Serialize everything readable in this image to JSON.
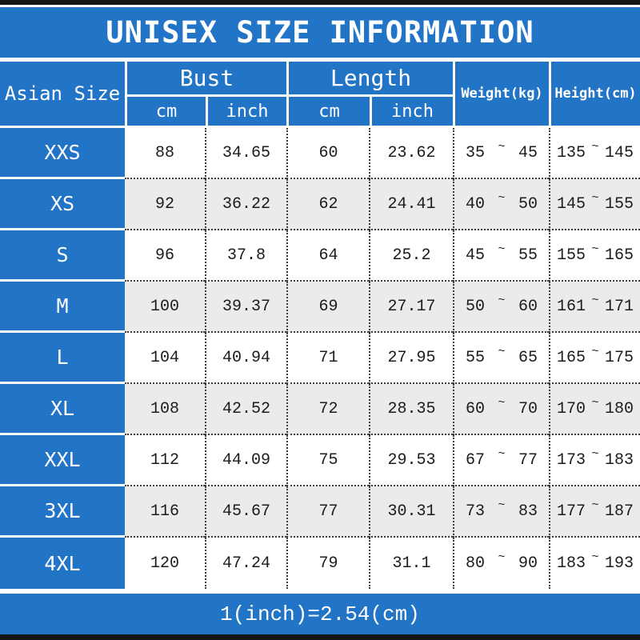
{
  "chart_data": {
    "type": "table",
    "title": "UNISEX SIZE INFORMATION",
    "header": {
      "size_column": "Asian Size",
      "bust_group": "Bust",
      "length_group": "Length",
      "unit_cm": "cm",
      "unit_inch": "inch",
      "weight_column": "Weight(kg)",
      "height_column": "Height(cm)"
    },
    "tilde": "~",
    "columns": [
      "Asian Size",
      "Bust cm",
      "Bust inch",
      "Length cm",
      "Length inch",
      "Weight(kg)",
      "Height(cm)"
    ],
    "rows": [
      {
        "size": "XXS",
        "bust_cm": "88",
        "bust_inch": "34.65",
        "length_cm": "60",
        "length_inch": "23.62",
        "weight_min": "35",
        "weight_max": "45",
        "height_min": "135",
        "height_max": "145"
      },
      {
        "size": "XS",
        "bust_cm": "92",
        "bust_inch": "36.22",
        "length_cm": "62",
        "length_inch": "24.41",
        "weight_min": "40",
        "weight_max": "50",
        "height_min": "145",
        "height_max": "155"
      },
      {
        "size": "S",
        "bust_cm": "96",
        "bust_inch": "37.8",
        "length_cm": "64",
        "length_inch": "25.2",
        "weight_min": "45",
        "weight_max": "55",
        "height_min": "155",
        "height_max": "165"
      },
      {
        "size": "M",
        "bust_cm": "100",
        "bust_inch": "39.37",
        "length_cm": "69",
        "length_inch": "27.17",
        "weight_min": "50",
        "weight_max": "60",
        "height_min": "161",
        "height_max": "171"
      },
      {
        "size": "L",
        "bust_cm": "104",
        "bust_inch": "40.94",
        "length_cm": "71",
        "length_inch": "27.95",
        "weight_min": "55",
        "weight_max": "65",
        "height_min": "165",
        "height_max": "175"
      },
      {
        "size": "XL",
        "bust_cm": "108",
        "bust_inch": "42.52",
        "length_cm": "72",
        "length_inch": "28.35",
        "weight_min": "60",
        "weight_max": "70",
        "height_min": "170",
        "height_max": "180"
      },
      {
        "size": "XXL",
        "bust_cm": "112",
        "bust_inch": "44.09",
        "length_cm": "75",
        "length_inch": "29.53",
        "weight_min": "67",
        "weight_max": "77",
        "height_min": "173",
        "height_max": "183"
      },
      {
        "size": "3XL",
        "bust_cm": "116",
        "bust_inch": "45.67",
        "length_cm": "77",
        "length_inch": "30.31",
        "weight_min": "73",
        "weight_max": "83",
        "height_min": "177",
        "height_max": "187"
      },
      {
        "size": "4XL",
        "bust_cm": "120",
        "bust_inch": "47.24",
        "length_cm": "79",
        "length_inch": "31.1",
        "weight_min": "80",
        "weight_max": "90",
        "height_min": "183",
        "height_max": "193"
      }
    ],
    "footer": "1(inch)=2.54(cm)",
    "colors": {
      "blue": "#2174c6",
      "alt_row": "#ebebeb",
      "bar_black": "#151515",
      "text_dark": "#1c1c1c"
    }
  }
}
